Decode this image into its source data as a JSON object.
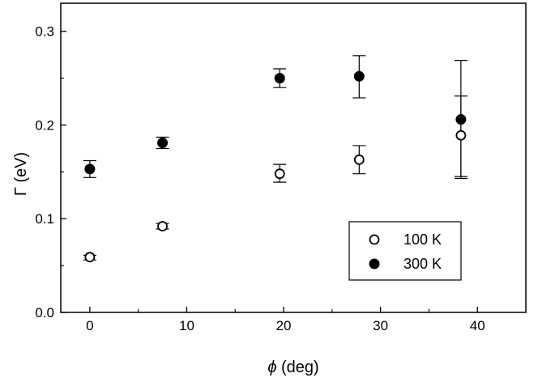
{
  "chart_data": {
    "type": "scatter",
    "xlabel_symbol": "ϕ",
    "xlabel_rest": " (deg)",
    "ylabel": "Γ (eV)",
    "xlim": [
      -3,
      45
    ],
    "ylim": [
      0.0,
      0.33
    ],
    "xticks": [
      0,
      10,
      20,
      30,
      40
    ],
    "xtick_labels": [
      "0",
      "10",
      "20",
      "30",
      "40"
    ],
    "yticks": [
      0.0,
      0.1,
      0.2,
      0.3
    ],
    "ytick_labels": [
      "0.0",
      "0.1",
      "0.2",
      "0.3"
    ],
    "grid": false,
    "legend_position": "bottom-right",
    "series": [
      {
        "name": "100 K",
        "marker": "open-circle",
        "color": "#000000",
        "x": [
          0,
          7.5,
          19.6,
          27.8,
          38.3
        ],
        "y": [
          0.059,
          0.092,
          0.148,
          0.163,
          0.189
        ],
        "err_low": [
          0.056,
          0.089,
          0.139,
          0.148,
          0.145
        ],
        "err_high": [
          0.061,
          0.095,
          0.158,
          0.178,
          0.231
        ]
      },
      {
        "name": "300 K",
        "marker": "filled-circle",
        "color": "#000000",
        "x": [
          0,
          7.5,
          19.6,
          27.8,
          38.3
        ],
        "y": [
          0.153,
          0.181,
          0.25,
          0.252,
          0.206
        ],
        "err_low": [
          0.144,
          0.175,
          0.24,
          0.229,
          0.143
        ],
        "err_high": [
          0.162,
          0.187,
          0.26,
          0.274,
          0.269
        ]
      }
    ]
  }
}
